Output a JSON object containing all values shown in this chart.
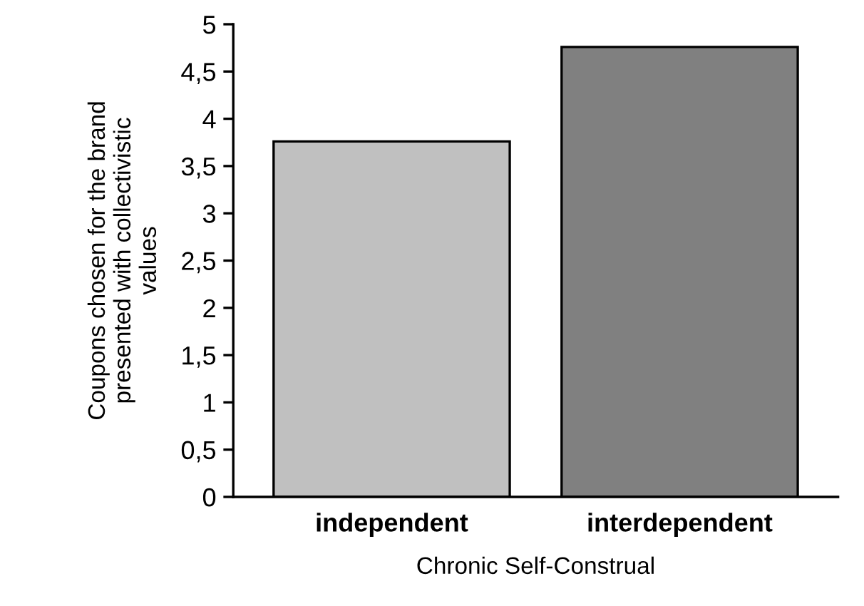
{
  "chart_data": {
    "type": "bar",
    "xlabel": "Chronic Self-Construal",
    "ylabel": "Coupons chosen for the brand\npresented with collectivistic\nvalues",
    "categories": [
      "independent",
      "interdependent"
    ],
    "values": [
      3.76,
      4.76
    ],
    "colors": [
      "#c0c0c0",
      "#808080"
    ],
    "ylim": [
      0,
      5
    ],
    "yticks": [
      0,
      {
        "value": 0.5,
        "label": "0,5"
      },
      1,
      {
        "value": 1.5,
        "label": "1,5"
      },
      2,
      {
        "value": 2.5,
        "label": "2,5"
      },
      3,
      {
        "value": 3.5,
        "label": "3,5"
      },
      4,
      {
        "value": 4.5,
        "label": "4,5"
      },
      5
    ],
    "grid": false,
    "legend": false
  }
}
